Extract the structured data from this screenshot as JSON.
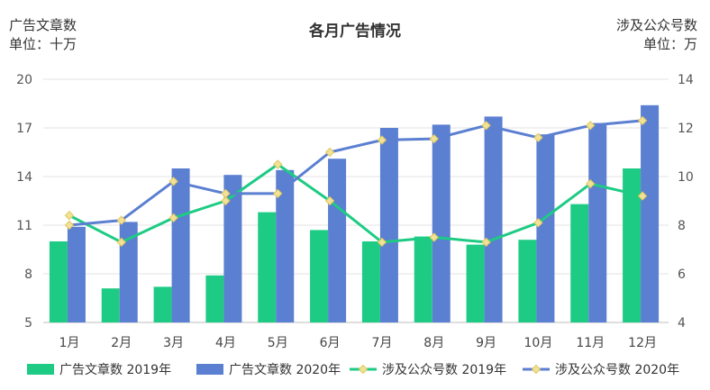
{
  "chart_data": {
    "type": "bar+line",
    "title": "各月广告情况",
    "left_axis": {
      "label_line1": "广告文章数",
      "label_line2": "单位：十万",
      "ylim": [
        5,
        20
      ],
      "ticks": [
        "20",
        "17",
        "14",
        "11",
        "8",
        "5"
      ],
      "tick_values": [
        20,
        17,
        14,
        11,
        8,
        5
      ]
    },
    "right_axis": {
      "label_line1": "涉及公众号数",
      "label_line2": "单位：万",
      "ylim": [
        4,
        14
      ],
      "ticks": [
        "14",
        "12",
        "10",
        "8",
        "6",
        "4"
      ],
      "tick_values": [
        14,
        12,
        10,
        8,
        6,
        4
      ]
    },
    "categories": [
      "1月",
      "2月",
      "3月",
      "4月",
      "5月",
      "6月",
      "7月",
      "8月",
      "9月",
      "10月",
      "11月",
      "12月"
    ],
    "grid": true,
    "legend_position": "bottom",
    "series": [
      {
        "name": "广告文章数 2019年",
        "kind": "bar",
        "axis": "left",
        "color": "#1ecb84",
        "values": [
          10.0,
          7.1,
          7.2,
          7.9,
          11.8,
          10.7,
          10.0,
          10.3,
          9.8,
          10.1,
          12.3,
          14.5
        ]
      },
      {
        "name": "广告文章数 2020年",
        "kind": "bar",
        "axis": "left",
        "color": "#5b7fd1",
        "values": [
          10.9,
          11.2,
          14.5,
          14.1,
          14.4,
          15.1,
          17.0,
          17.2,
          17.7,
          16.6,
          17.3,
          18.4
        ]
      },
      {
        "name": "涉及公众号数 2019年",
        "kind": "line",
        "axis": "right",
        "color": "#1ecb84",
        "values": [
          8.4,
          7.3,
          8.3,
          9.0,
          10.5,
          9.0,
          7.3,
          7.5,
          7.3,
          8.1,
          9.7,
          9.2
        ]
      },
      {
        "name": "涉及公众号数 2020年",
        "kind": "line",
        "axis": "right",
        "color": "#5b7fd1",
        "values": [
          8.0,
          8.2,
          9.8,
          9.3,
          9.3,
          11.0,
          11.5,
          11.55,
          12.1,
          11.6,
          12.1,
          12.3
        ]
      }
    ],
    "marker_color": "#f1e29a"
  }
}
